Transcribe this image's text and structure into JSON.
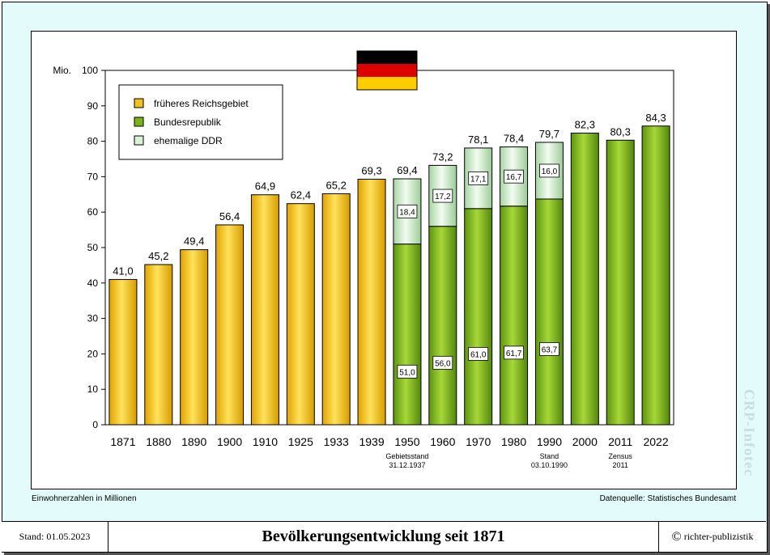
{
  "footer": {
    "date": "Stand: 01.05.2023",
    "title": "Bevölkerungsentwicklung seit 1871",
    "copyright_symbol": "©",
    "copyright": "richter-publizistik"
  },
  "notes": {
    "left": "Einwohnerzahlen in Millionen",
    "right": "Datenquelle: Statistisches Bundesamt"
  },
  "watermark": "CRP-Infotec",
  "flag_colors": [
    "#000000",
    "#dd0000",
    "#ffcc00"
  ],
  "chart_data": {
    "type": "bar",
    "stacked": true,
    "title": "Bevölkerungsentwicklung seit 1871",
    "ylabel": "Mio.",
    "ylim": [
      0,
      100
    ],
    "yticks": [
      0,
      10,
      20,
      30,
      40,
      50,
      60,
      70,
      80,
      90,
      100
    ],
    "grid": false,
    "legend_position": "top-left",
    "categories": [
      "1871",
      "1880",
      "1890",
      "1900",
      "1910",
      "1925",
      "1933",
      "1939",
      "1950",
      "1960",
      "1970",
      "1980",
      "1990",
      "2000",
      "2011",
      "2022"
    ],
    "series": [
      {
        "name": "früheres Reichsgebiet",
        "color": "#f2c01c",
        "values": [
          41.0,
          45.2,
          49.4,
          56.4,
          64.9,
          62.4,
          65.2,
          69.3,
          null,
          null,
          null,
          null,
          null,
          null,
          null,
          null
        ]
      },
      {
        "name": "Bundesrepublik",
        "color": "#7db31a",
        "values": [
          null,
          null,
          null,
          null,
          null,
          null,
          null,
          null,
          51.0,
          56.0,
          61.0,
          61.7,
          63.7,
          82.3,
          80.3,
          84.3
        ]
      },
      {
        "name": "ehemalige DDR",
        "color": "#d9f2d5",
        "values": [
          null,
          null,
          null,
          null,
          null,
          null,
          null,
          null,
          18.4,
          17.2,
          17.1,
          16.7,
          16.0,
          null,
          null,
          null
        ]
      }
    ],
    "totals": [
      41.0,
      45.2,
      49.4,
      56.4,
      64.9,
      62.4,
      65.2,
      69.3,
      69.4,
      73.2,
      78.1,
      78.4,
      79.7,
      82.3,
      80.3,
      84.3
    ],
    "total_labels": [
      "41,0",
      "45,2",
      "49,4",
      "56,4",
      "64,9",
      "62,4",
      "65,2",
      "69,3",
      "69,4",
      "73,2",
      "78,1",
      "78,4",
      "79,7",
      "82,3",
      "80,3",
      "84,3"
    ],
    "segment_labels": [
      {
        "category": "1950",
        "brd": "51,0",
        "ddr": "18,4"
      },
      {
        "category": "1960",
        "brd": "56,0",
        "ddr": "17,2"
      },
      {
        "category": "1970",
        "brd": "61,0",
        "ddr": "17,1"
      },
      {
        "category": "1980",
        "brd": "61,7",
        "ddr": "16,7"
      },
      {
        "category": "1990",
        "brd": "63,7",
        "ddr": "16,0"
      }
    ],
    "annotations": [
      {
        "category": "1950",
        "lines": [
          "Gebietsstand",
          "31.12.1937"
        ]
      },
      {
        "category": "1990",
        "lines": [
          "Stand",
          "03.10.1990"
        ]
      },
      {
        "category": "2011",
        "lines": [
          "Zensus",
          "2011"
        ]
      }
    ]
  }
}
